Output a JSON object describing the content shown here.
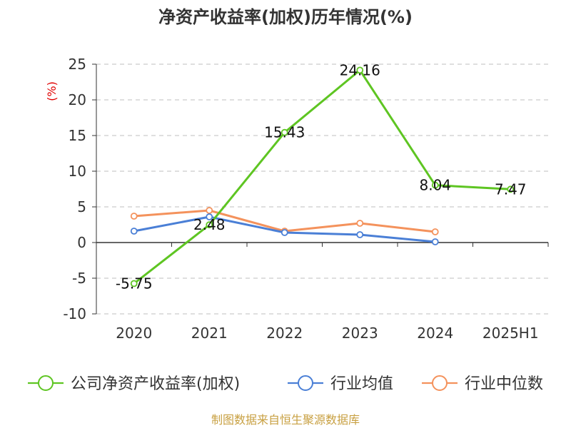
{
  "chart_data": {
    "type": "line",
    "title": "净资产收益率(加权)历年情况(%)",
    "ylabel": "(%)",
    "categories": [
      "2020",
      "2021",
      "2022",
      "2023",
      "2024",
      "2025H1"
    ],
    "ylim": [
      -10,
      25
    ],
    "yticks": [
      -10,
      -5,
      0,
      5,
      10,
      15,
      20,
      25
    ],
    "ytick_labels": [
      "-10",
      "-5",
      "0",
      "5",
      "10",
      "15",
      "20",
      "25"
    ],
    "grid": true,
    "legend_position": "bottom",
    "series": [
      {
        "name": "公司净资产收益率(加权)",
        "color": "#5ec522",
        "values": [
          -5.75,
          2.48,
          15.43,
          24.16,
          8.04,
          7.47
        ],
        "labels": [
          "-5.75",
          "2.48",
          "15.43",
          "24.16",
          "8.04",
          "7.47"
        ]
      },
      {
        "name": "行业均值",
        "color": "#4a7fd6",
        "values": [
          1.6,
          3.6,
          1.4,
          1.1,
          0.1,
          null
        ]
      },
      {
        "name": "行业中位数",
        "color": "#f4925c",
        "values": [
          3.7,
          4.5,
          1.6,
          2.7,
          1.5,
          null
        ]
      }
    ]
  },
  "source": "制图数据来自恒生聚源数据库"
}
